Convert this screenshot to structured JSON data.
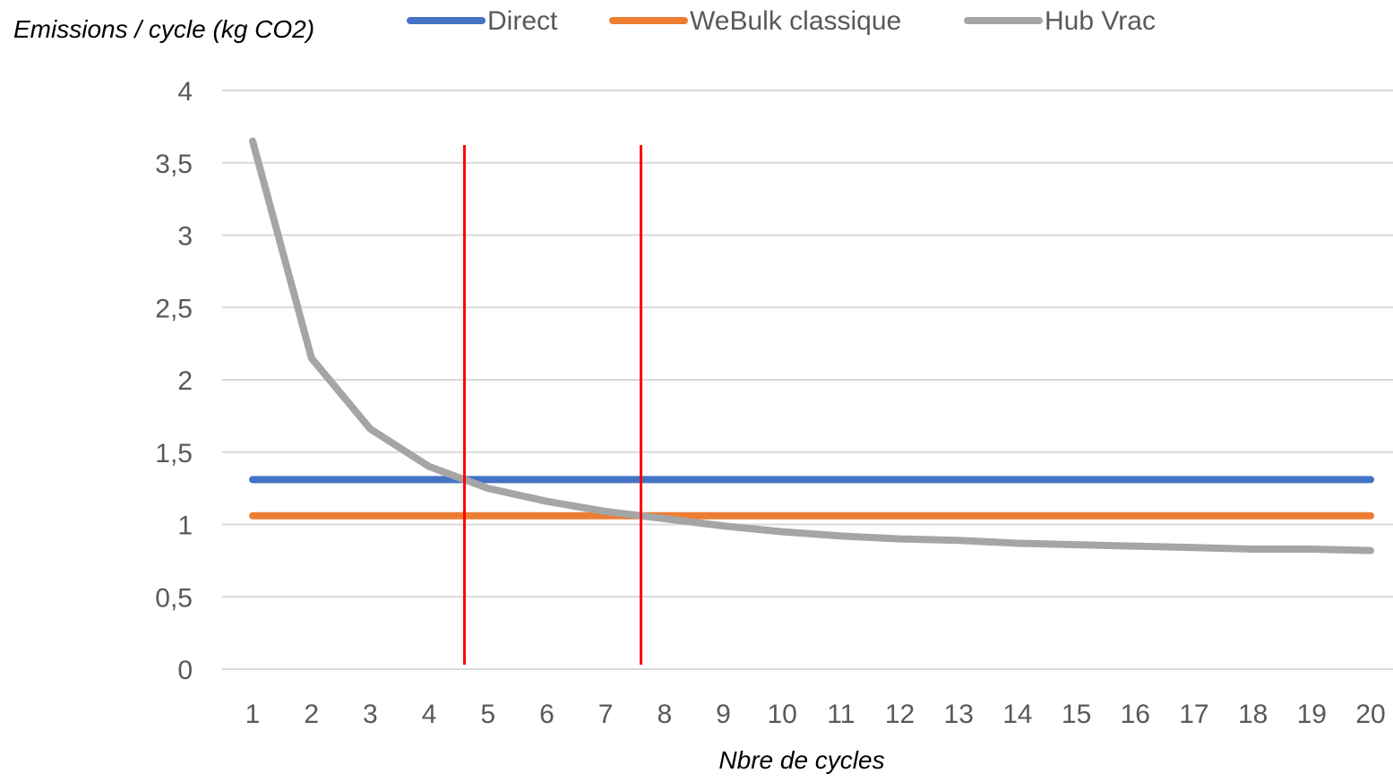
{
  "chart_data": {
    "type": "line",
    "title": "",
    "ylabel": "Emissions / cycle (kg CO2)",
    "xlabel": "Nbre de cycles",
    "categories": [
      "1",
      "2",
      "3",
      "4",
      "5",
      "6",
      "7",
      "8",
      "9",
      "10",
      "11",
      "12",
      "13",
      "14",
      "15",
      "16",
      "17",
      "18",
      "19",
      "20"
    ],
    "ylim": [
      0,
      4
    ],
    "yticks": [
      0,
      0.5,
      1,
      1.5,
      2,
      2.5,
      3,
      3.5,
      4
    ],
    "ytick_labels": [
      "0",
      "0,5",
      "1",
      "1,5",
      "2",
      "2,5",
      "3",
      "3,5",
      "4"
    ],
    "grid": true,
    "legend_position": "top",
    "series": [
      {
        "name": "Direct",
        "color": "#4472c4",
        "values": [
          1.31,
          1.31,
          1.31,
          1.31,
          1.31,
          1.31,
          1.31,
          1.31,
          1.31,
          1.31,
          1.31,
          1.31,
          1.31,
          1.31,
          1.31,
          1.31,
          1.31,
          1.31,
          1.31,
          1.31
        ]
      },
      {
        "name": "WeBulk classique",
        "color": "#ed7d31",
        "values": [
          1.06,
          1.06,
          1.06,
          1.06,
          1.06,
          1.06,
          1.06,
          1.06,
          1.06,
          1.06,
          1.06,
          1.06,
          1.06,
          1.06,
          1.06,
          1.06,
          1.06,
          1.06,
          1.06,
          1.06
        ]
      },
      {
        "name": "Hub Vrac",
        "color": "#a5a5a5",
        "values": [
          3.65,
          2.15,
          1.66,
          1.4,
          1.25,
          1.16,
          1.09,
          1.04,
          0.99,
          0.95,
          0.92,
          0.9,
          0.89,
          0.87,
          0.86,
          0.85,
          0.84,
          0.83,
          0.83,
          0.82
        ]
      }
    ],
    "annotations": [
      {
        "type": "vertical-line",
        "x": 4.6,
        "color": "#ff0000"
      },
      {
        "type": "vertical-line",
        "x": 7.6,
        "color": "#ff0000"
      }
    ]
  }
}
